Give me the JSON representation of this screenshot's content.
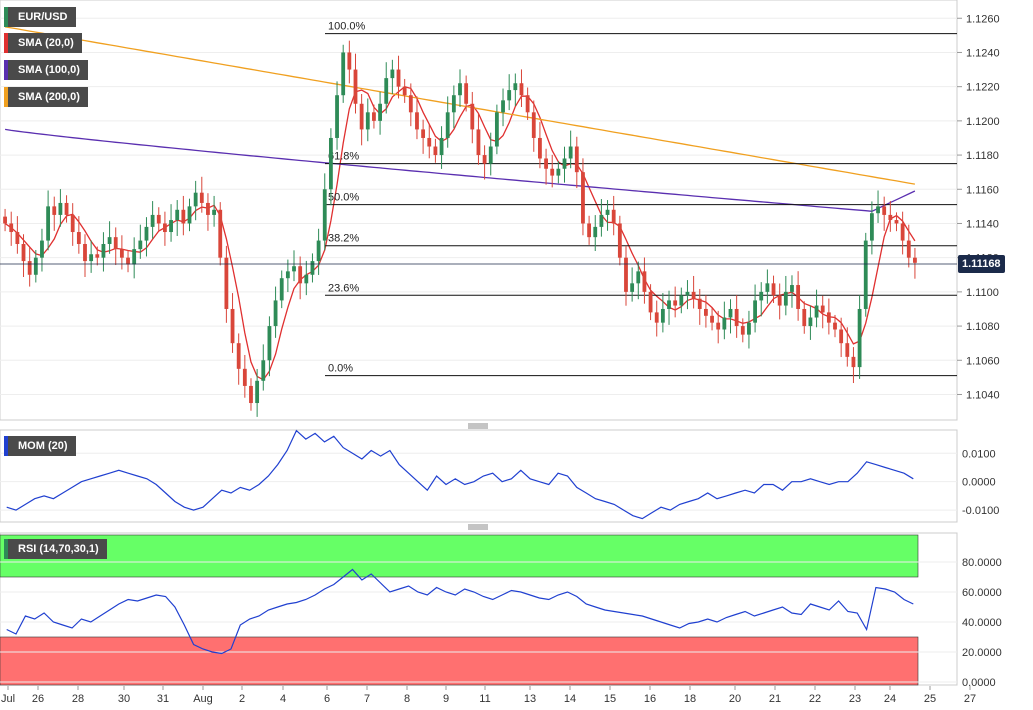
{
  "legends": {
    "main": [
      {
        "label": "EUR/USD",
        "color": "#2e8b57"
      },
      {
        "label": "SMA (20,0)",
        "color": "#e03030"
      },
      {
        "label": "SMA (100,0)",
        "color": "#5a2fb0"
      },
      {
        "label": "SMA (200,0)",
        "color": "#f0a020"
      }
    ],
    "mom": {
      "label": "MOM (20)",
      "color": "#2040d0"
    },
    "rsi": {
      "label": "RSI (14,70,30,1)",
      "color": "#2e8b57"
    }
  },
  "current_price": "1.11168",
  "chart_data": [
    {
      "type": "candlestick",
      "title": "EUR/USD",
      "y_axis": {
        "min": 1.1028,
        "max": 1.1266,
        "ticks": [
          "1.1260",
          "1.1240",
          "1.1220",
          "1.1200",
          "1.1180",
          "1.1160",
          "1.1140",
          "1.1120",
          "1.1100",
          "1.1080",
          "1.1060",
          "1.1040"
        ]
      },
      "x_axis": {
        "labels": [
          "Jul",
          "26",
          "28",
          "30",
          "31",
          "Aug",
          "2",
          "4",
          "6",
          "7",
          "8",
          "9",
          "11",
          "13",
          "14",
          "15",
          "16",
          "18",
          "20",
          "21",
          "22",
          "23",
          "24",
          "25",
          "27"
        ]
      },
      "closes": [
        1.114,
        1.1135,
        1.1128,
        1.1118,
        1.111,
        1.112,
        1.113,
        1.115,
        1.1145,
        1.1152,
        1.1145,
        1.1135,
        1.1128,
        1.1118,
        1.1122,
        1.112,
        1.1128,
        1.1132,
        1.1125,
        1.112,
        1.1116,
        1.1125,
        1.113,
        1.1138,
        1.1145,
        1.114,
        1.1135,
        1.1142,
        1.1148,
        1.114,
        1.115,
        1.1158,
        1.1152,
        1.1145,
        1.1148,
        1.112,
        1.109,
        1.107,
        1.1055,
        1.1045,
        1.1035,
        1.1048,
        1.106,
        1.108,
        1.1095,
        1.1108,
        1.1112,
        1.1115,
        1.1105,
        1.111,
        1.1118,
        1.113,
        1.116,
        1.119,
        1.1215,
        1.124,
        1.123,
        1.121,
        1.1195,
        1.1205,
        1.12,
        1.121,
        1.1225,
        1.123,
        1.122,
        1.1215,
        1.1205,
        1.1195,
        1.119,
        1.1185,
        1.118,
        1.119,
        1.1205,
        1.1215,
        1.1222,
        1.121,
        1.1195,
        1.118,
        1.1175,
        1.1185,
        1.1205,
        1.1212,
        1.1218,
        1.1222,
        1.1215,
        1.1205,
        1.119,
        1.1178,
        1.1172,
        1.1168,
        1.1172,
        1.1178,
        1.1185,
        1.117,
        1.114,
        1.1132,
        1.1138,
        1.1145,
        1.1148,
        1.114,
        1.112,
        1.11,
        1.1105,
        1.1112,
        1.11,
        1.1088,
        1.1082,
        1.109,
        1.1095,
        1.1092,
        1.1098,
        1.11,
        1.1096,
        1.109,
        1.1086,
        1.1082,
        1.1078,
        1.1085,
        1.109,
        1.108,
        1.1075,
        1.1082,
        1.1095,
        1.11,
        1.1105,
        1.1098,
        1.1092,
        1.11,
        1.1104,
        1.109,
        1.108,
        1.1085,
        1.1092,
        1.1088,
        1.1082,
        1.1078,
        1.107,
        1.1062,
        1.1056,
        1.109,
        1.113,
        1.1146,
        1.115,
        1.1145,
        1.1142,
        1.114,
        1.113,
        1.112,
        1.1117
      ]
    },
    {
      "type": "line",
      "name": "SMA (20,0)",
      "color": "#e03030",
      "window": 20
    },
    {
      "type": "line",
      "name": "SMA (100,0)",
      "color": "#5a2fb0",
      "window": 100
    },
    {
      "type": "line",
      "name": "SMA (200,0)",
      "color": "#f0a020",
      "window": 200
    },
    {
      "type": "fibonacci",
      "levels": [
        {
          "label": "100.0%",
          "price": 1.1251
        },
        {
          "label": "61.8%",
          "price": 1.1175
        },
        {
          "label": "50.0%",
          "price": 1.1151
        },
        {
          "label": "38.2%",
          "price": 1.1127
        },
        {
          "label": "23.6%",
          "price": 1.1098
        },
        {
          "label": "0.0%",
          "price": 1.1051
        }
      ]
    },
    {
      "type": "line",
      "title": "MOM (20)",
      "y_axis": {
        "min": -0.0135,
        "max": 0.0175,
        "ticks": [
          "0.0100",
          "0.0000",
          "-0.0100"
        ]
      },
      "values": [
        -0.009,
        -0.01,
        -0.008,
        -0.006,
        -0.005,
        -0.006,
        -0.004,
        -0.002,
        0.0,
        0.001,
        0.002,
        0.003,
        0.004,
        0.003,
        0.002,
        0.001,
        -0.001,
        -0.004,
        -0.007,
        -0.009,
        -0.01,
        -0.009,
        -0.006,
        -0.003,
        -0.004,
        -0.002,
        -0.003,
        -0.001,
        0.002,
        0.006,
        0.011,
        0.018,
        0.015,
        0.017,
        0.014,
        0.016,
        0.012,
        0.01,
        0.008,
        0.011,
        0.009,
        0.011,
        0.006,
        0.003,
        0.0,
        -0.003,
        0.002,
        -0.001,
        0.001,
        -0.001,
        0.0,
        0.002,
        0.003,
        0.0,
        0.001,
        0.004,
        0.001,
        0.0,
        -0.001,
        0.003,
        0.002,
        -0.002,
        -0.004,
        -0.006,
        -0.007,
        -0.008,
        -0.01,
        -0.012,
        -0.013,
        -0.011,
        -0.009,
        -0.01,
        -0.008,
        -0.007,
        -0.006,
        -0.004,
        -0.006,
        -0.005,
        -0.004,
        -0.003,
        -0.004,
        -0.001,
        -0.001,
        -0.003,
        0.0,
        0.0,
        0.001,
        0.0,
        -0.001,
        0.0,
        0.0,
        0.003,
        0.007,
        0.006,
        0.005,
        0.004,
        0.003,
        0.001
      ]
    },
    {
      "type": "line",
      "title": "RSI (14,70,30,1)",
      "y_axis": {
        "min": 0,
        "max": 100,
        "ticks": [
          "80.0000",
          "60.0000",
          "40.0000",
          "20.0000",
          "0.0000"
        ]
      },
      "bands": {
        "overbought": 70,
        "oversold": 30
      },
      "values": [
        35,
        32,
        44,
        42,
        46,
        40,
        38,
        36,
        42,
        40,
        44,
        48,
        52,
        55,
        54,
        56,
        58,
        57,
        50,
        38,
        25,
        22,
        20,
        19,
        22,
        38,
        42,
        44,
        48,
        50,
        52,
        53,
        55,
        58,
        62,
        65,
        70,
        75,
        68,
        72,
        66,
        60,
        62,
        64,
        60,
        58,
        63,
        60,
        58,
        62,
        60,
        57,
        55,
        58,
        61,
        60,
        58,
        56,
        55,
        58,
        60,
        57,
        52,
        50,
        48,
        47,
        46,
        45,
        44,
        42,
        40,
        38,
        36,
        39,
        40,
        42,
        40,
        43,
        45,
        47,
        44,
        46,
        48,
        50,
        46,
        45,
        52,
        50,
        48,
        54,
        47,
        46,
        35,
        63,
        62,
        60,
        55,
        52
      ]
    }
  ]
}
